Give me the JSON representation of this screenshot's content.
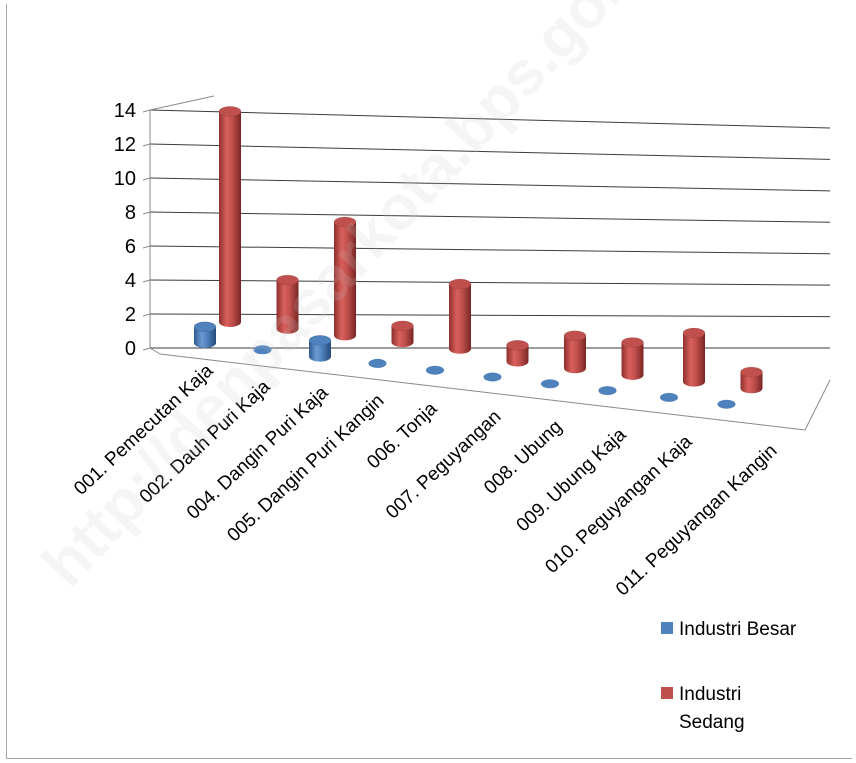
{
  "chart_data": {
    "type": "bar",
    "style": "3d-cylinder",
    "categories": [
      "001. Pemecutan Kaja",
      "002. Dauh Puri Kaja",
      "004. Dangin Puri Kaja",
      "005. Dangin Puri Kangin",
      "006. Tonja",
      "007. Peguyangan",
      "008. Ubung",
      "009. Ubung Kaja",
      "010. Peguyangan Kaja",
      "011. Peguyangan Kangin"
    ],
    "series": [
      {
        "name": "Industri Besar",
        "color": "#4f81bd",
        "values": [
          1,
          0,
          1,
          0,
          0,
          0,
          0,
          0,
          0,
          0
        ]
      },
      {
        "name": "Industri Sedang",
        "color": "#c0504d",
        "values": [
          13,
          3,
          7,
          1,
          4,
          1,
          2,
          2,
          3,
          1
        ]
      }
    ],
    "yticks": [
      0,
      2,
      4,
      6,
      8,
      10,
      12,
      14
    ],
    "ylim": [
      0,
      14
    ],
    "grid": true,
    "legend": {
      "position": "bottom-right"
    },
    "watermark": "http://denpasarkota.bps.go.id"
  }
}
